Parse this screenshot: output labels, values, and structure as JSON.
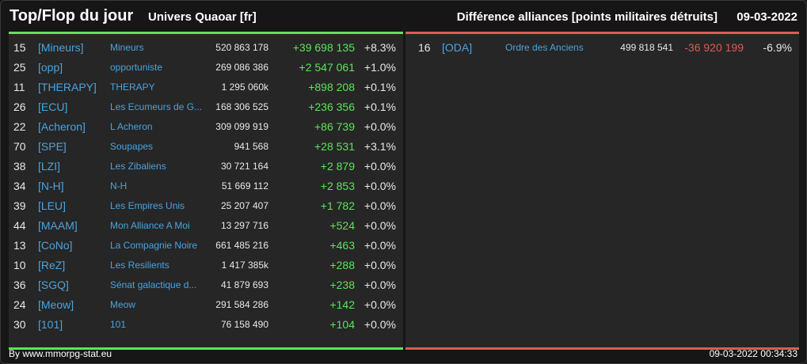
{
  "header": {
    "title": "Top/Flop du jour",
    "univers": "Univers Quaoar [fr]",
    "subtitle": "Différence alliances [points militaires détruits]",
    "date": "09-03-2022"
  },
  "colors": {
    "positive": "#5ee25b",
    "negative": "#e05a55",
    "link": "#4aa3df"
  },
  "top": [
    {
      "rank": "15",
      "tag": "[Mineurs]",
      "name": "Mineurs",
      "points": "520 863 178",
      "diff": "+39 698 135",
      "pct": "+8.3%"
    },
    {
      "rank": "25",
      "tag": "[opp]",
      "name": "opportuniste",
      "points": "269 086 386",
      "diff": "+2 547 061",
      "pct": "+1.0%"
    },
    {
      "rank": "11",
      "tag": "[THERAPY]",
      "name": "THERAPY",
      "points": "1 295 060k",
      "diff": "+898 208",
      "pct": "+0.1%"
    },
    {
      "rank": "26",
      "tag": "[ECU]",
      "name": "Les Ecumeurs de G...",
      "points": "168 306 525",
      "diff": "+236 356",
      "pct": "+0.1%"
    },
    {
      "rank": "22",
      "tag": "[Acheron]",
      "name": "L Acheron",
      "points": "309 099 919",
      "diff": "+86 739",
      "pct": "+0.0%"
    },
    {
      "rank": "70",
      "tag": "[SPE]",
      "name": "Soupapes",
      "points": "941 568",
      "diff": "+28 531",
      "pct": "+3.1%"
    },
    {
      "rank": "38",
      "tag": "[LZI]",
      "name": "Les Zibaliens",
      "points": "30 721 164",
      "diff": "+2 879",
      "pct": "+0.0%"
    },
    {
      "rank": "34",
      "tag": "[N-H]",
      "name": "N-H",
      "points": "51 669 112",
      "diff": "+2 853",
      "pct": "+0.0%"
    },
    {
      "rank": "39",
      "tag": "[LEU]",
      "name": "Les Empires Unis",
      "points": "25 207 407",
      "diff": "+1 782",
      "pct": "+0.0%"
    },
    {
      "rank": "44",
      "tag": "[MAAM]",
      "name": "Mon Alliance A Moi",
      "points": "13 297 716",
      "diff": "+524",
      "pct": "+0.0%"
    },
    {
      "rank": "13",
      "tag": "[CoNo]",
      "name": "La Compagnie Noire",
      "points": "661 485 216",
      "diff": "+463",
      "pct": "+0.0%"
    },
    {
      "rank": "10",
      "tag": "[ReZ]",
      "name": "Les Resilients",
      "points": "1 417 385k",
      "diff": "+288",
      "pct": "+0.0%"
    },
    {
      "rank": "36",
      "tag": "[SGQ]",
      "name": "Sénat galactique d...",
      "points": "41 879 693",
      "diff": "+238",
      "pct": "+0.0%"
    },
    {
      "rank": "24",
      "tag": "[Meow]",
      "name": "Meow",
      "points": "291 584 286",
      "diff": "+142",
      "pct": "+0.0%"
    },
    {
      "rank": "30",
      "tag": "[101]",
      "name": "101",
      "points": "76 158 490",
      "diff": "+104",
      "pct": "+0.0%"
    }
  ],
  "flop": [
    {
      "rank": "16",
      "tag": "[ODA]",
      "name": "Ordre des Anciens",
      "points": "499 818 541",
      "diff": "-36 920 199",
      "pct": "-6.9%"
    }
  ],
  "footer": {
    "source": "By www.mmorpg-stat.eu",
    "timestamp": "09-03-2022 00:34:33"
  }
}
